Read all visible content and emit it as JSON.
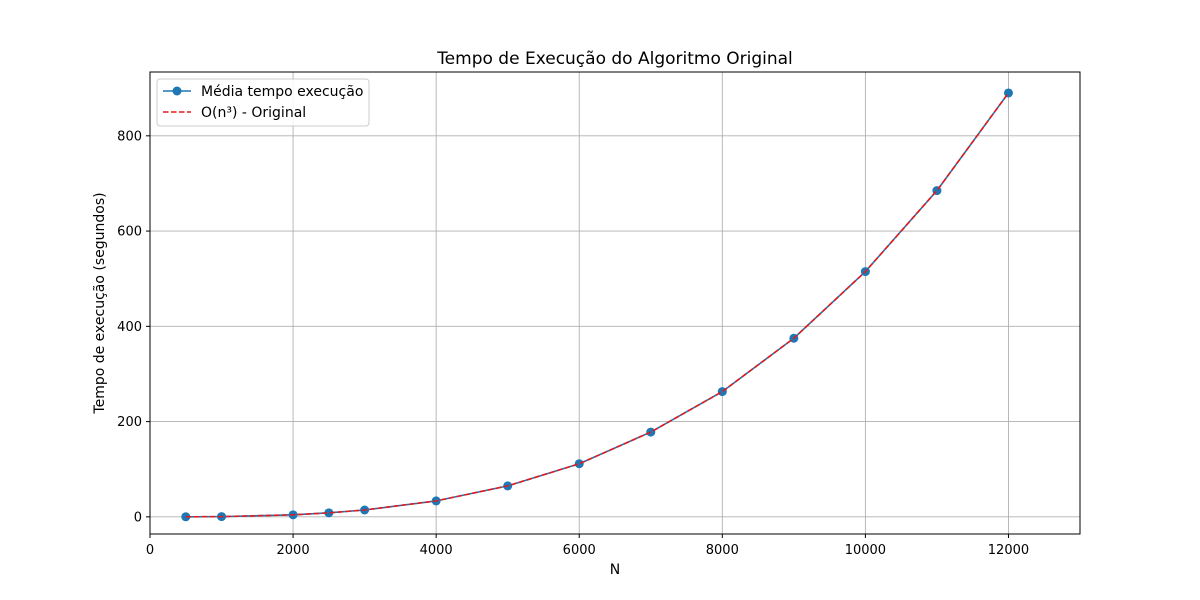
{
  "chart_data": {
    "type": "line",
    "title": "Tempo de Execução do Algoritmo Original",
    "xlabel": "N",
    "ylabel": "Tempo de execução (segundos)",
    "xlim": [
      0,
      13000
    ],
    "ylim": [
      -36,
      934
    ],
    "xticks": [
      0,
      2000,
      4000,
      6000,
      8000,
      10000,
      12000
    ],
    "yticks": [
      0,
      200,
      400,
      600,
      800
    ],
    "grid": true,
    "legend_position": "upper-left",
    "x": [
      500,
      1000,
      2000,
      2500,
      3000,
      4000,
      5000,
      6000,
      7000,
      8000,
      9000,
      10000,
      11000,
      12000
    ],
    "series": [
      {
        "name": "Média tempo execução",
        "style": "solid-with-markers",
        "color": "#1f77b4",
        "values": [
          0.1,
          0.5,
          4.2,
          8.4,
          14.4,
          33.5,
          65,
          111.5,
          178,
          263,
          375,
          515,
          685,
          890
        ]
      },
      {
        "name": "O(n³) - Original",
        "style": "dashed",
        "color": "#e31a1c",
        "values": [
          0.1,
          0.5,
          4.2,
          8.4,
          14.4,
          33.5,
          65,
          111.5,
          178,
          263,
          375,
          515,
          685,
          890
        ]
      }
    ]
  }
}
